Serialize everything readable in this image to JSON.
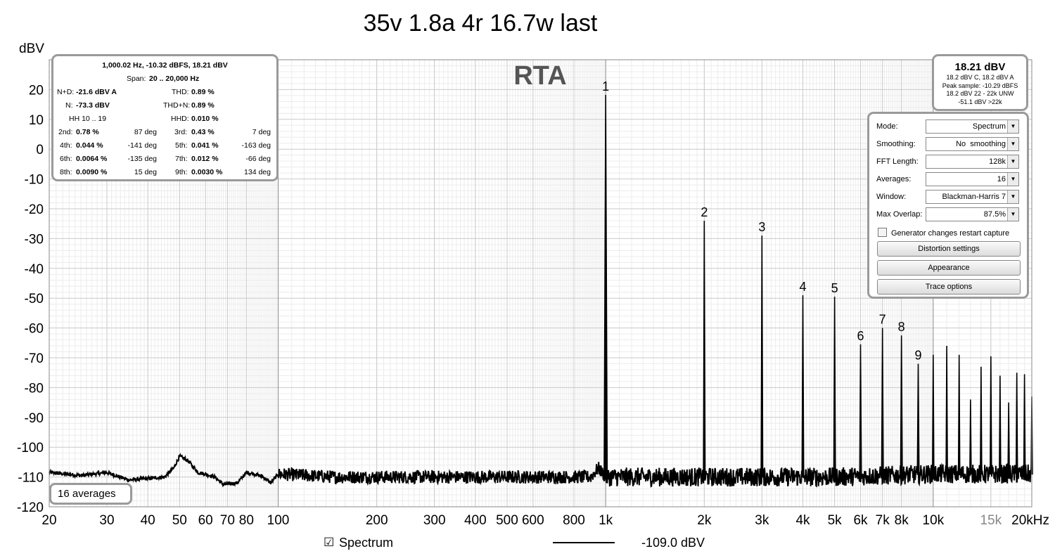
{
  "chart_data": {
    "type": "line",
    "title": "35v 1.8a 4r 16.7w last",
    "watermark": "RTA",
    "ylabel": "dBV",
    "xscale": "log",
    "xlim": [
      20,
      20000
    ],
    "ylim": [
      -120,
      30
    ],
    "yticks": [
      20,
      10,
      0,
      -10,
      -20,
      -30,
      -40,
      -50,
      -60,
      -70,
      -80,
      -90,
      -100,
      -110,
      -120
    ],
    "xticks": [
      {
        "v": 20,
        "label": "20"
      },
      {
        "v": 30,
        "label": "30"
      },
      {
        "v": 40,
        "label": "40"
      },
      {
        "v": 50,
        "label": "50"
      },
      {
        "v": 60,
        "label": "60"
      },
      {
        "v": 70,
        "label": "70"
      },
      {
        "v": 80,
        "label": "80"
      },
      {
        "v": 100,
        "label": "100"
      },
      {
        "v": 200,
        "label": "200"
      },
      {
        "v": 300,
        "label": "300"
      },
      {
        "v": 400,
        "label": "400"
      },
      {
        "v": 500,
        "label": "500"
      },
      {
        "v": 600,
        "label": "600"
      },
      {
        "v": 800,
        "label": "800"
      },
      {
        "v": 1000,
        "label": "1k"
      },
      {
        "v": 2000,
        "label": "2k"
      },
      {
        "v": 3000,
        "label": "3k"
      },
      {
        "v": 4000,
        "label": "4k"
      },
      {
        "v": 5000,
        "label": "5k"
      },
      {
        "v": 6000,
        "label": "6k"
      },
      {
        "v": 7000,
        "label": "7k"
      },
      {
        "v": 8000,
        "label": "8k"
      },
      {
        "v": 10000,
        "label": "10k"
      },
      {
        "v": 15000,
        "label": "15k"
      },
      {
        "v": 20000,
        "label": "20kHz"
      }
    ],
    "grid": true,
    "series": [
      {
        "name": "Spectrum",
        "color": "#000000"
      }
    ],
    "noise_floor": [
      [
        20,
        -108.5
      ],
      [
        25,
        -109.5
      ],
      [
        30,
        -108.5
      ],
      [
        35,
        -111
      ],
      [
        40,
        -110.5
      ],
      [
        45,
        -110
      ],
      [
        48,
        -107
      ],
      [
        50,
        -103
      ],
      [
        53,
        -104.5
      ],
      [
        57,
        -108.5
      ],
      [
        60,
        -109
      ],
      [
        64,
        -110
      ],
      [
        68,
        -112.5
      ],
      [
        75,
        -112
      ],
      [
        80,
        -108.5
      ],
      [
        85,
        -109
      ],
      [
        90,
        -110
      ],
      [
        95,
        -112
      ],
      [
        100,
        -109
      ],
      [
        150,
        -110
      ],
      [
        200,
        -110
      ],
      [
        300,
        -110
      ],
      [
        500,
        -110
      ],
      [
        700,
        -110
      ],
      [
        900,
        -110
      ],
      [
        950,
        -107
      ],
      [
        1000,
        -110
      ],
      [
        2000,
        -110
      ],
      [
        5000,
        -110
      ],
      [
        10000,
        -109
      ],
      [
        20000,
        -109
      ]
    ],
    "harmonics": [
      {
        "n": "1",
        "freq": 1000,
        "level": 18.2
      },
      {
        "n": "2",
        "freq": 2000,
        "level": -24
      },
      {
        "n": "3",
        "freq": 3000,
        "level": -29
      },
      {
        "n": "4",
        "freq": 4000,
        "level": -49
      },
      {
        "n": "5",
        "freq": 5000,
        "level": -49.5
      },
      {
        "n": "6",
        "freq": 6000,
        "level": -65.5
      },
      {
        "n": "7",
        "freq": 7000,
        "level": -60
      },
      {
        "n": "8",
        "freq": 8000,
        "level": -62.5
      },
      {
        "n": "9",
        "freq": 9000,
        "level": -72
      }
    ],
    "higher_harmonics": [
      {
        "freq": 10000,
        "level": -69
      },
      {
        "freq": 11000,
        "level": -66
      },
      {
        "freq": 12000,
        "level": -69
      },
      {
        "freq": 13000,
        "level": -84
      },
      {
        "freq": 14000,
        "level": -73
      },
      {
        "freq": 15000,
        "level": -69.5
      },
      {
        "freq": 16000,
        "level": -76
      },
      {
        "freq": 17000,
        "level": -85
      },
      {
        "freq": 18000,
        "level": -75
      },
      {
        "freq": 19000,
        "level": -75.5
      },
      {
        "freq": 20000,
        "level": -83
      }
    ]
  },
  "info": {
    "header": "1,000.02 Hz, -10.32 dBFS, 18.21 dBV",
    "span_label": "Span:",
    "span_value": "20 .. 20,000 Hz",
    "nd_label": "N+D:",
    "nd_value": "-21.6 dBV A",
    "thd_label": "THD:",
    "thd_value": "0.89 %",
    "n_label": "N:",
    "n_value": "-73.3 dBV",
    "thdn_label": "THD+N:",
    "thdn_value": "0.89 %",
    "hh_label": "HH 10 .. 19",
    "hhd_label": "HHD:",
    "hhd_value": "0.010 %",
    "harm": [
      {
        "l1": "2nd:",
        "v1": "0.78 %",
        "p1": "87 deg",
        "l2": "3rd:",
        "v2": "0.43 %",
        "p2": "7 deg"
      },
      {
        "l1": "4th:",
        "v1": "0.044 %",
        "p1": "-141 deg",
        "l2": "5th:",
        "v2": "0.041 %",
        "p2": "-163 deg"
      },
      {
        "l1": "6th:",
        "v1": "0.0064 %",
        "p1": "-135 deg",
        "l2": "7th:",
        "v2": "0.012 %",
        "p2": "-66 deg"
      },
      {
        "l1": "8th:",
        "v1": "0.0090 %",
        "p1": "15 deg",
        "l2": "9th:",
        "v2": "0.0030 %",
        "p2": "134 deg"
      }
    ]
  },
  "level": {
    "main": "18.21 dBV",
    "lines": [
      "18.2 dBV C, 18.2 dBV A",
      "Peak sample: -10.29 dBFS",
      "18.2 dBV 22 - 22k UNW",
      "-51.1 dBV >22k"
    ]
  },
  "settings": {
    "mode_label": "Mode:",
    "mode_value": "Spectrum",
    "smoothing_label": "Smoothing:",
    "smoothing_value": "No  smoothing",
    "fft_label": "FFT Length:",
    "fft_value": "128k",
    "averages_label": "Averages:",
    "averages_value": "16",
    "window_label": "Window:",
    "window_value": "Blackman-Harris 7",
    "overlap_label": "Max Overlap:",
    "overlap_value": "87.5%",
    "generator_label": "Generator changes restart capture",
    "distortion_button": "Distortion settings",
    "appearance_button": "Appearance",
    "trace_button": "Trace options"
  },
  "averages_badge": "16 averages",
  "legend": {
    "checkbox_glyph": "☑",
    "series_name": "Spectrum",
    "cursor_value": "-109.0 dBV"
  }
}
